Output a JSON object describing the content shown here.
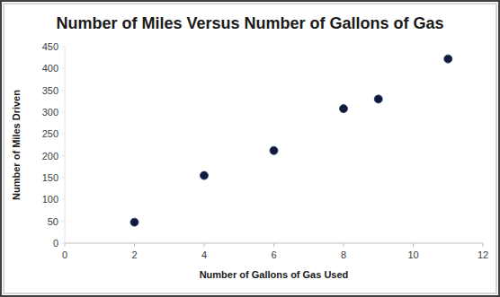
{
  "chart_data": {
    "type": "scatter",
    "title": "Number of Miles Versus Number of Gallons of Gas",
    "x_label": "Number of Gallons of Gas Used",
    "y_label": "Number of Miles Driven",
    "x": [
      2,
      4,
      6,
      8,
      9,
      11
    ],
    "values": [
      48,
      155,
      212,
      308,
      330,
      422
    ],
    "color": "#0f1a3c",
    "marker": "circle",
    "xlim": [
      0,
      12
    ],
    "xticks": [
      0,
      2,
      4,
      6,
      8,
      10,
      12
    ],
    "ylim": [
      0,
      450
    ],
    "yticks": [
      0,
      50,
      100,
      150,
      200,
      250,
      300,
      350,
      400,
      450
    ],
    "grid": false
  }
}
